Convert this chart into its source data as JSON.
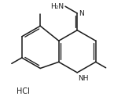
{
  "background_color": "#ffffff",
  "line_color": "#1a1a1a",
  "line_width": 1.1,
  "font_size": 6.5,
  "figsize": [
    1.73,
    1.37
  ],
  "dpi": 100,
  "xlim": [
    -0.5,
    5.5
  ],
  "ylim": [
    -1.6,
    3.4
  ]
}
